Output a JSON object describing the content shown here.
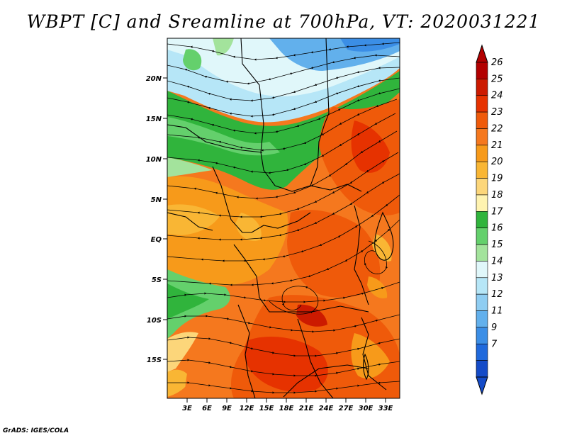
{
  "title": "WBPT [C] and Sreamline at 700hPa, VT: 2020031221",
  "credit": "GrADS: IGES/COLA",
  "map": {
    "field": "wet-bulb potential temperature",
    "overlay": "streamlines",
    "lat_labels": [
      "20N",
      "15N",
      "10N",
      "5N",
      "EQ",
      "5S",
      "10S",
      "15S"
    ],
    "lon_labels": [
      "3E",
      "6E",
      "9E",
      "12E",
      "15E",
      "18E",
      "21E",
      "24E",
      "27E",
      "30E",
      "33E"
    ]
  },
  "colorbar": {
    "labels": [
      "26",
      "25",
      "24",
      "23",
      "22",
      "21",
      "20",
      "19",
      "18",
      "17",
      "16",
      "15",
      "14",
      "13",
      "12",
      "11",
      "9",
      "7"
    ],
    "colors": [
      "#b20000",
      "#cc1a00",
      "#e63200",
      "#ef5a0a",
      "#f5781e",
      "#f79a1a",
      "#f9b634",
      "#fcd67a",
      "#fff3b0",
      "#30b43c",
      "#64d06c",
      "#a3e39c",
      "#e0f7fa",
      "#b6e6f7",
      "#8fcdf2",
      "#62b0ec",
      "#3b8ee6",
      "#1f69dc",
      "#144bc8"
    ],
    "arrow_top_color": "#b20000",
    "arrow_bottom_color": "#144bc8"
  }
}
